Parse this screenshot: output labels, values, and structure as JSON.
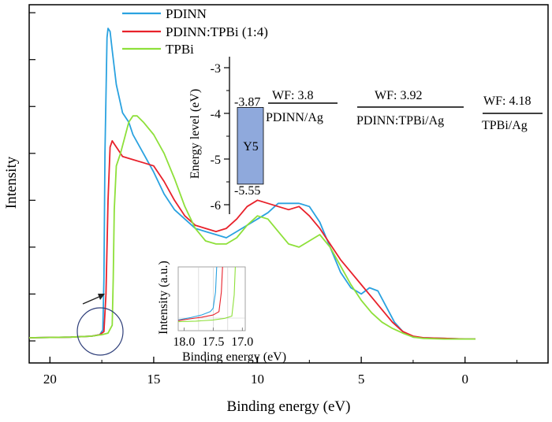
{
  "chart_data": [
    {
      "type": "line",
      "xlabel": "Binding energy (eV)",
      "ylabel": "Intensity",
      "x_ticks": [
        "20",
        "15",
        "10",
        "5",
        "0"
      ],
      "x_tick_values": [
        20,
        15,
        10,
        5,
        0
      ],
      "xlim": [
        21,
        -4
      ],
      "x_reversed": true,
      "ylim": [
        0,
        1.05
      ],
      "y_tick_labels_shown": false,
      "legend": {
        "placement": "top-left-inside"
      },
      "series": [
        {
          "name": "PDINN",
          "color": "#2aa2e0",
          "x": [
            21,
            19,
            18,
            17.6,
            17.45,
            17.4,
            17.35,
            17.25,
            17.2,
            17.1,
            17.0,
            16.8,
            16.5,
            16.2,
            16,
            15.5,
            15,
            14.5,
            14,
            13.5,
            13,
            12.5,
            12,
            11.5,
            11,
            10.5,
            10,
            9.5,
            9,
            8.5,
            8,
            7.5,
            7,
            6.5,
            6,
            5.5,
            5,
            4.6,
            4.2,
            3.8,
            3.4,
            3,
            2.5,
            2,
            1,
            0,
            -0.5
          ],
          "y": [
            0.01,
            0.012,
            0.015,
            0.02,
            0.035,
            0.2,
            0.6,
            0.97,
            1.0,
            0.99,
            0.93,
            0.82,
            0.73,
            0.7,
            0.66,
            0.6,
            0.54,
            0.47,
            0.42,
            0.39,
            0.36,
            0.35,
            0.34,
            0.33,
            0.35,
            0.37,
            0.39,
            0.41,
            0.44,
            0.44,
            0.44,
            0.43,
            0.38,
            0.3,
            0.22,
            0.17,
            0.15,
            0.17,
            0.16,
            0.11,
            0.06,
            0.03,
            0.012,
            0.01,
            0.008,
            0.006,
            0.006
          ]
        },
        {
          "name": "PDINN:TPBi (1:4)",
          "color": "#e8212b",
          "x": [
            21,
            19,
            18,
            17.6,
            17.4,
            17.3,
            17.2,
            17.1,
            17.0,
            16.9,
            16.7,
            16.5,
            16,
            15.5,
            15,
            14.5,
            14,
            13.5,
            13,
            12.5,
            12,
            11.5,
            11,
            10.5,
            10,
            9.5,
            9,
            8.5,
            8,
            7.5,
            7,
            6.5,
            6,
            5.5,
            5,
            4.5,
            4,
            3.5,
            3,
            2.5,
            2,
            1,
            0,
            -0.5
          ],
          "y": [
            0.01,
            0.012,
            0.015,
            0.02,
            0.03,
            0.15,
            0.45,
            0.62,
            0.64,
            0.63,
            0.61,
            0.59,
            0.58,
            0.57,
            0.56,
            0.51,
            0.45,
            0.4,
            0.37,
            0.36,
            0.35,
            0.36,
            0.39,
            0.43,
            0.45,
            0.44,
            0.43,
            0.42,
            0.43,
            0.4,
            0.36,
            0.31,
            0.26,
            0.22,
            0.18,
            0.14,
            0.1,
            0.06,
            0.03,
            0.015,
            0.01,
            0.008,
            0.006,
            0.006
          ]
        },
        {
          "name": "TPBi",
          "color": "#8ee03a",
          "x": [
            21,
            19,
            18,
            17.5,
            17.2,
            17.0,
            16.95,
            16.9,
            16.8,
            16.6,
            16.4,
            16.2,
            16,
            15.8,
            15.5,
            15,
            14.5,
            14,
            13.5,
            13,
            12.5,
            12,
            11.5,
            11,
            10.5,
            10,
            9.5,
            9,
            8.5,
            8,
            7.5,
            7,
            6.5,
            6,
            5.5,
            5,
            4.5,
            4,
            3.5,
            3,
            2.5,
            2,
            1,
            0,
            -0.5
          ],
          "y": [
            0.01,
            0.012,
            0.015,
            0.02,
            0.025,
            0.05,
            0.2,
            0.42,
            0.56,
            0.6,
            0.65,
            0.7,
            0.72,
            0.72,
            0.7,
            0.66,
            0.6,
            0.52,
            0.43,
            0.36,
            0.32,
            0.31,
            0.31,
            0.33,
            0.37,
            0.4,
            0.39,
            0.35,
            0.31,
            0.3,
            0.32,
            0.34,
            0.3,
            0.24,
            0.18,
            0.13,
            0.09,
            0.06,
            0.04,
            0.025,
            0.012,
            0.008,
            0.006,
            0.006,
            0.006
          ]
        }
      ]
    },
    {
      "type": "diagram",
      "ylabel": "Energy level (eV)",
      "y_ticks": [
        "-3",
        "-4",
        "-5",
        "-6"
      ],
      "y_tick_values": [
        -3,
        -4,
        -5,
        -6
      ],
      "ylim": [
        -6.3,
        -2.8
      ],
      "y5_box": {
        "label": "Y5",
        "top": -3.87,
        "bottom": -5.55,
        "top_label": "-3.87",
        "bottom_label": "-5.55",
        "color": "#8fa9dc"
      },
      "work_functions": [
        {
          "label": "WF: 3.8",
          "sample": "PDINN/Ag",
          "value": 3.8
        },
        {
          "label": "WF: 3.92",
          "sample": "PDINN:TPBi/Ag",
          "value": 3.92
        },
        {
          "label": "WF: 4.18",
          "sample": "TPBi/Ag",
          "value": 4.18
        }
      ]
    },
    {
      "type": "line",
      "xlabel": "Binding energy (eV)",
      "ylabel": "Intensity (a.u.)",
      "x_ticks": [
        "18.0",
        "17.5",
        "17.0"
      ],
      "x_tick_values": [
        18.0,
        17.5,
        17.0
      ],
      "xlim": [
        18.1,
        16.95
      ],
      "x_reversed": true,
      "series": [
        {
          "color": "#2aa2e0",
          "x": [
            18.1,
            17.9,
            17.7,
            17.55,
            17.5,
            17.46,
            17.44
          ],
          "y": [
            0.05,
            0.09,
            0.14,
            0.2,
            0.26,
            0.55,
            1.0
          ]
        },
        {
          "color": "#e8212b",
          "x": [
            18.1,
            17.9,
            17.7,
            17.5,
            17.4,
            17.36,
            17.34
          ],
          "y": [
            0.04,
            0.07,
            0.1,
            0.14,
            0.2,
            0.55,
            1.0
          ]
        },
        {
          "color": "#8ee03a",
          "x": [
            18.1,
            17.8,
            17.5,
            17.3,
            17.18,
            17.14,
            17.12
          ],
          "y": [
            0.02,
            0.03,
            0.05,
            0.08,
            0.12,
            0.5,
            1.0
          ]
        }
      ]
    }
  ]
}
